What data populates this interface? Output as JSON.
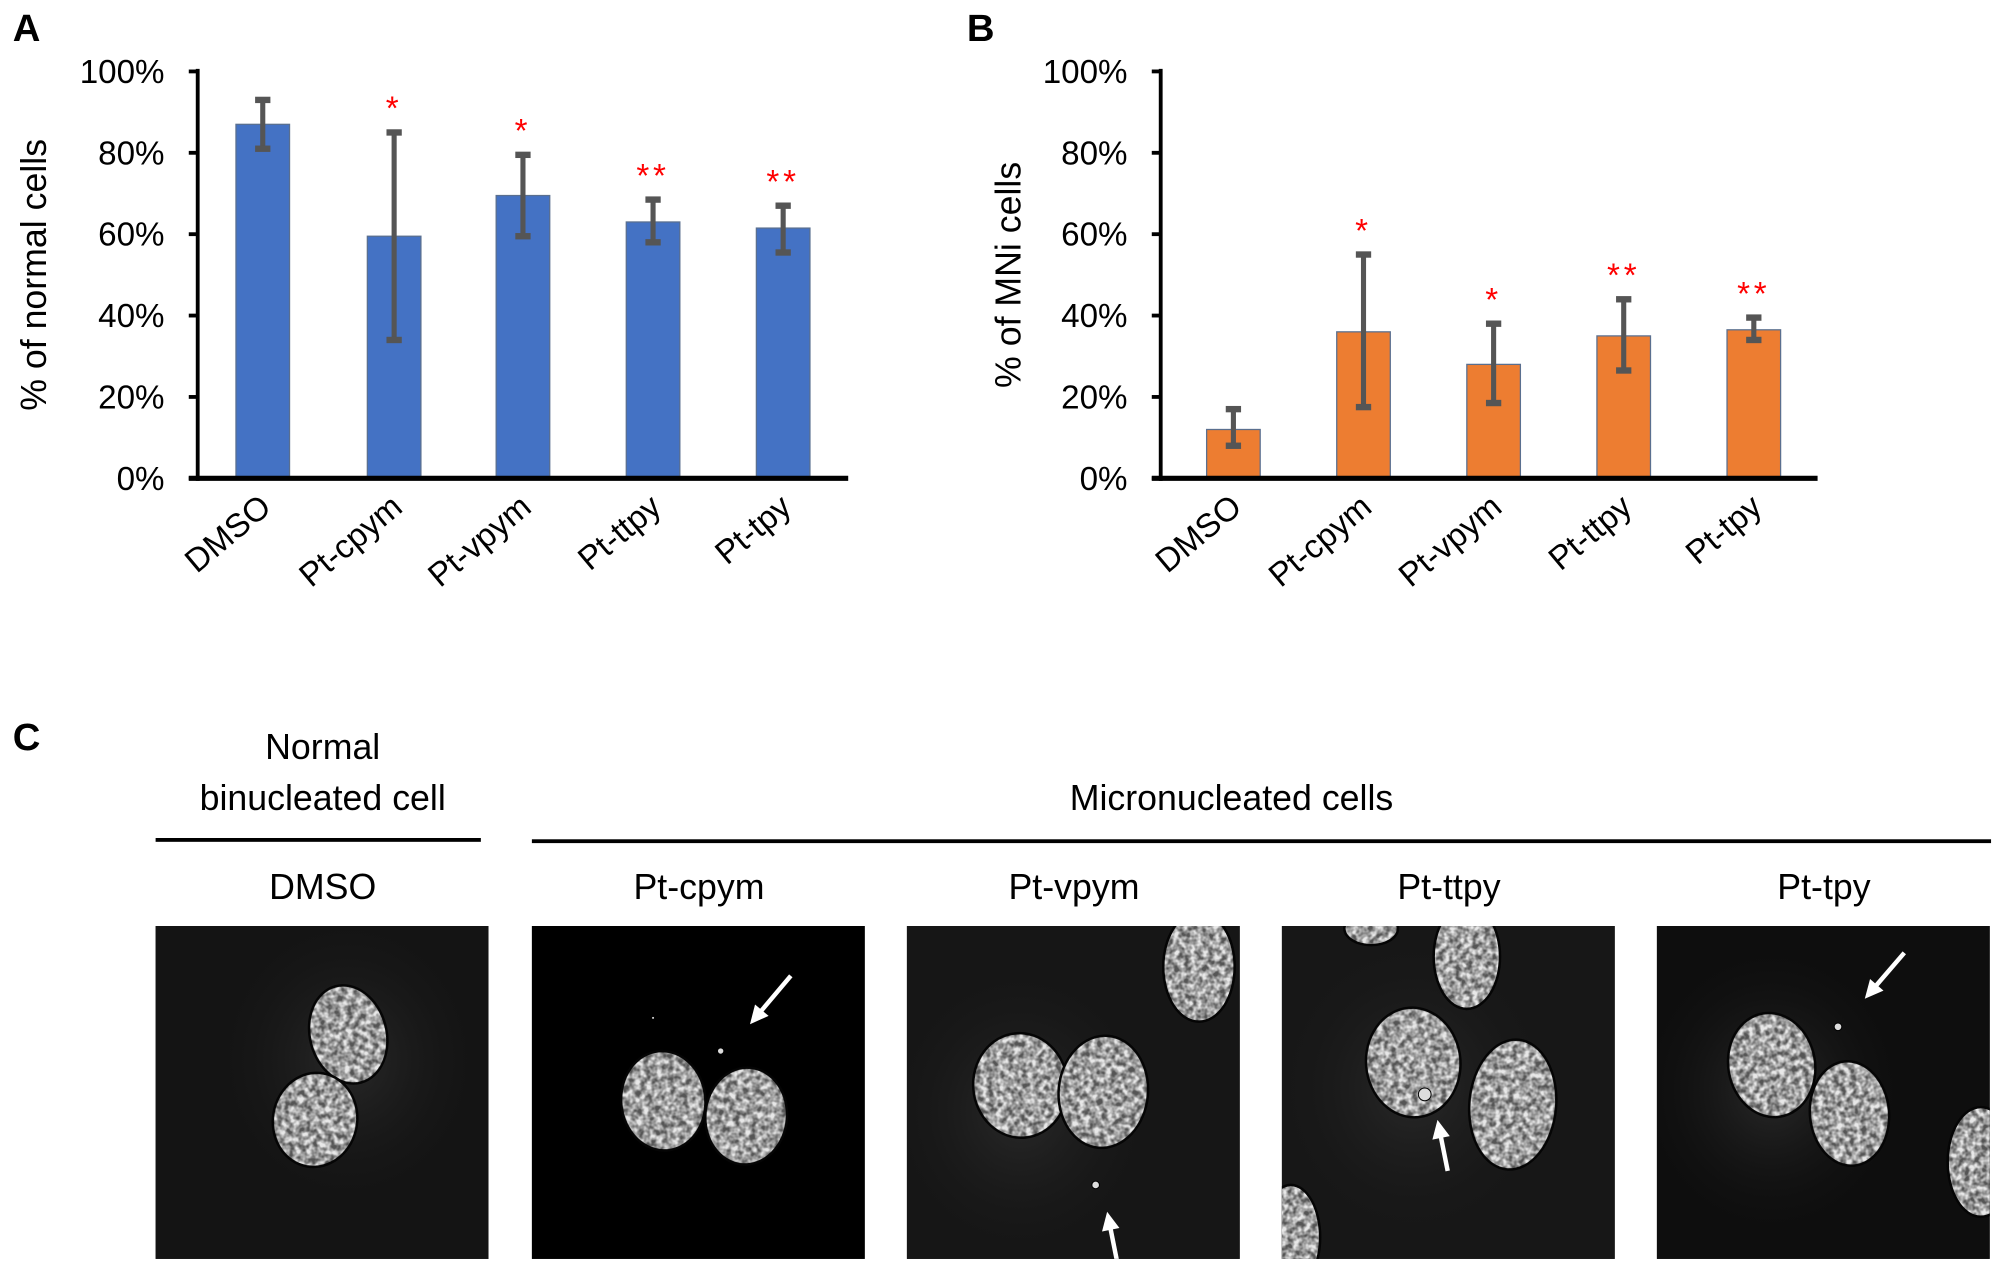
{
  "chart_data": [
    {
      "panel": "A",
      "type": "bar",
      "ylabel": "% of normal cells",
      "categories": [
        "DMSO",
        "Pt-cpym",
        "Pt-vpym",
        "Pt-ttpy",
        "Pt-tpy"
      ],
      "values": [
        87,
        59.5,
        69.5,
        63,
        61.5
      ],
      "error_low": [
        81,
        34,
        59.5,
        58,
        55.5
      ],
      "error_high": [
        93,
        85,
        79.5,
        68.5,
        67
      ],
      "significance": [
        "",
        "*",
        "*",
        "**",
        "**"
      ],
      "yticks": [
        "0%",
        "20%",
        "40%",
        "60%",
        "80%",
        "100%"
      ],
      "ylim": [
        0,
        100
      ],
      "grid": false,
      "bar_color": "#4472C4",
      "error_color": "#555555",
      "significance_color": "#FF0000"
    },
    {
      "panel": "B",
      "type": "bar",
      "ylabel": "% of MNi cells",
      "categories": [
        "DMSO",
        "Pt-cpym",
        "Pt-vpym",
        "Pt-ttpy",
        "Pt-tpy"
      ],
      "values": [
        12,
        36,
        28,
        35,
        36.5
      ],
      "error_low": [
        8,
        17.5,
        18.5,
        26.5,
        34
      ],
      "error_high": [
        17,
        55,
        38,
        44,
        39.5
      ],
      "significance": [
        "",
        "*",
        "*",
        "**",
        "**"
      ],
      "yticks": [
        "0%",
        "20%",
        "40%",
        "60%",
        "80%",
        "100%"
      ],
      "ylim": [
        0,
        100
      ],
      "grid": false,
      "bar_color": "#ED7D31",
      "error_color": "#555555",
      "significance_color": "#FF0000"
    }
  ],
  "panel_c": {
    "letter": "C",
    "normal_header": [
      "Normal",
      "binucleated cell"
    ],
    "micronucleated_header": "Micronucleated cells",
    "images": [
      {
        "label": "DMSO"
      },
      {
        "label": "Pt-cpym"
      },
      {
        "label": "Pt-vpym"
      },
      {
        "label": "Pt-ttpy"
      },
      {
        "label": "Pt-tpy"
      }
    ]
  }
}
